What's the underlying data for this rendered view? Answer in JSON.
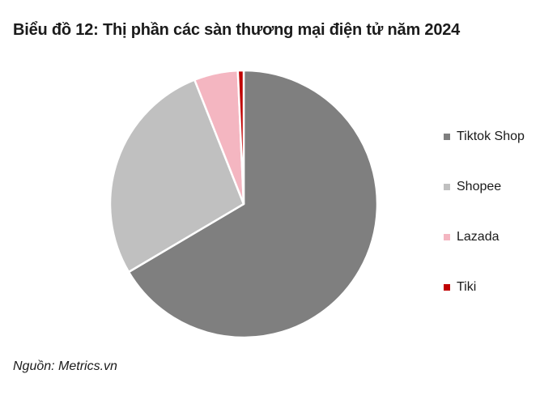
{
  "title": "Biểu đồ 12: Thị phần các sàn thương mại điện tử năm 2024",
  "source": "Nguồn: Metrics.vn",
  "chart_data": {
    "type": "pie",
    "title": "Biểu đồ 12: Thị phần các sàn thương mại điện tử năm 2024",
    "categories": [
      "Tiktok Shop",
      "Shopee",
      "Lazada",
      "Tiki"
    ],
    "values": [
      66.5,
      27.5,
      5.3,
      0.7
    ],
    "colors": [
      "#7f7f7f",
      "#c0c0c0",
      "#f4b6c1",
      "#c00000"
    ],
    "start_angle_deg": 0,
    "direction": "clockwise",
    "legend_position": "right"
  }
}
